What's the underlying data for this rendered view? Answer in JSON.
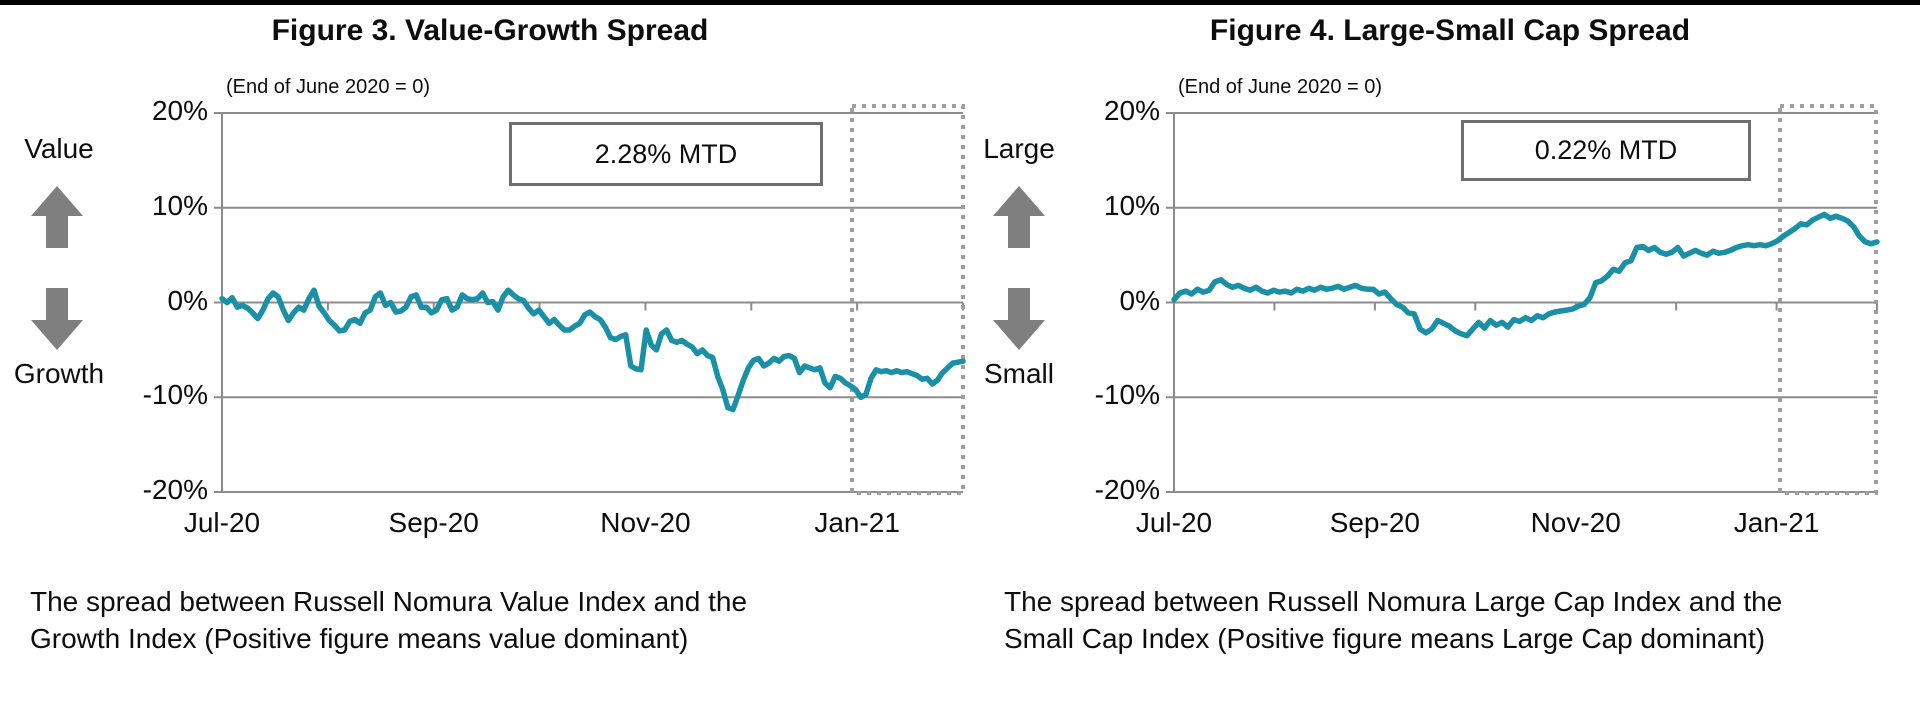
{
  "page": {
    "description": "Two side-by-side line charts comparing Japanese equity style spreads",
    "background_color": "#ffffff",
    "top_bar_color": "#000000"
  },
  "chart_data": [
    {
      "type": "line",
      "title": "Figure 3. Value-Growth Spread",
      "subtitle": "(End of June 2020 = 0)",
      "mtd_label": "2.28% MTD",
      "axis_label_top": "Value",
      "axis_label_bottom": "Growth",
      "caption_line1": "The spread between Russell Nomura Value Index and the",
      "caption_line2": "Growth Index (Positive figure means value dominant)",
      "series_name": "Russell Nomura Value minus Growth cumulative spread (%)",
      "y_tick_labels": [
        "20%",
        "10%",
        "0%",
        "-10%",
        "-20%"
      ],
      "x_tick_labels": [
        "Jul-20",
        "Sep-20",
        "Nov-20",
        "Jan-21"
      ],
      "x_tick_month_offsets": [
        0,
        2,
        4,
        6
      ],
      "x_months_span": 7,
      "ylim": [
        -20,
        20
      ],
      "grid": "horizontal",
      "legend": "none",
      "highlight": "dotted box over January 2021",
      "line_color": "#1A90A6",
      "values": [
        0.4,
        0.0,
        0.5,
        -0.5,
        -0.3,
        -0.6,
        -1.1,
        -1.7,
        -0.8,
        0.4,
        1.0,
        0.6,
        -0.8,
        -1.9,
        -1.1,
        -0.5,
        -0.8,
        0.4,
        1.3,
        -0.4,
        -1.1,
        -1.9,
        -2.4,
        -3.0,
        -2.9,
        -2.0,
        -1.8,
        -2.2,
        -1.1,
        -0.8,
        0.6,
        1.0,
        -0.3,
        0.0,
        -1.0,
        -0.9,
        -0.5,
        0.6,
        0.8,
        -0.5,
        -0.5,
        -1.1,
        -0.8,
        0.3,
        0.4,
        -0.8,
        -0.5,
        0.8,
        0.4,
        0.3,
        0.4,
        1.0,
        0.0,
        0.1,
        -0.8,
        0.6,
        1.3,
        0.8,
        0.4,
        0.2,
        -0.6,
        -1.2,
        -0.8,
        -1.5,
        -2.2,
        -1.8,
        -2.4,
        -2.9,
        -2.9,
        -2.5,
        -2.2,
        -1.3,
        -1.0,
        -1.5,
        -1.8,
        -2.6,
        -3.7,
        -3.9,
        -3.6,
        -3.4,
        -6.7,
        -7.0,
        -7.1,
        -2.9,
        -4.5,
        -5.0,
        -3.3,
        -2.9,
        -4.0,
        -4.2,
        -4.0,
        -4.4,
        -4.7,
        -5.4,
        -5.0,
        -5.6,
        -5.8,
        -7.8,
        -9.2,
        -11.1,
        -11.3,
        -9.8,
        -8.2,
        -6.9,
        -6.1,
        -5.9,
        -6.7,
        -6.4,
        -5.9,
        -6.2,
        -5.7,
        -5.6,
        -5.9,
        -7.4,
        -6.7,
        -6.9,
        -7.1,
        -6.9,
        -8.5,
        -9.0,
        -7.8,
        -8.0,
        -8.5,
        -8.8,
        -9.2,
        -10.0,
        -9.7,
        -8.0,
        -7.1,
        -7.3,
        -7.2,
        -7.4,
        -7.2,
        -7.4,
        -7.3,
        -7.5,
        -7.7,
        -8.1,
        -8.0,
        -8.6,
        -8.2,
        -7.4,
        -6.9,
        -6.4,
        -6.3,
        -6.2
      ]
    },
    {
      "type": "line",
      "title": "Figure 4. Large-Small Cap Spread",
      "subtitle": "(End of June 2020 = 0)",
      "mtd_label": "0.22% MTD",
      "axis_label_top": "Large",
      "axis_label_bottom": "Small",
      "caption_line1": "The spread between Russell Nomura Large Cap Index and the",
      "caption_line2": "Small Cap Index (Positive figure means Large Cap dominant)",
      "series_name": "Russell Nomura Large Cap minus Small Cap cumulative spread (%)",
      "y_tick_labels": [
        "20%",
        "10%",
        "0%",
        "-10%",
        "-20%"
      ],
      "x_tick_labels": [
        "Jul-20",
        "Sep-20",
        "Nov-20",
        "Jan-21"
      ],
      "x_tick_month_offsets": [
        0,
        2,
        4,
        6
      ],
      "x_months_span": 7,
      "ylim": [
        -20,
        20
      ],
      "grid": "horizontal",
      "legend": "none",
      "highlight": "dotted box over January 2021",
      "line_color": "#1A90A6",
      "values": [
        0.3,
        1.0,
        1.2,
        0.9,
        1.4,
        1.1,
        1.3,
        2.2,
        2.4,
        1.9,
        1.6,
        1.8,
        1.5,
        1.3,
        1.6,
        1.2,
        1.0,
        1.3,
        1.1,
        1.2,
        1.0,
        1.4,
        1.2,
        1.5,
        1.3,
        1.6,
        1.4,
        1.5,
        1.7,
        1.4,
        1.6,
        1.8,
        1.5,
        1.4,
        1.4,
        0.9,
        1.1,
        0.4,
        -0.2,
        -0.5,
        -1.1,
        -1.2,
        -2.8,
        -3.2,
        -2.8,
        -1.9,
        -2.2,
        -2.5,
        -3.0,
        -3.3,
        -3.5,
        -2.8,
        -2.1,
        -2.7,
        -1.9,
        -2.4,
        -2.1,
        -2.6,
        -1.8,
        -2.0,
        -1.6,
        -1.9,
        -1.4,
        -1.6,
        -1.2,
        -1.0,
        -0.9,
        -0.8,
        -0.7,
        -0.4,
        -0.2,
        0.5,
        2.1,
        2.3,
        2.8,
        3.5,
        3.3,
        4.2,
        4.4,
        5.8,
        5.9,
        5.5,
        5.8,
        5.3,
        5.1,
        5.3,
        5.8,
        4.9,
        5.2,
        5.5,
        5.2,
        5.0,
        5.4,
        5.2,
        5.3,
        5.5,
        5.8,
        6.0,
        6.1,
        6.0,
        6.1,
        6.0,
        6.2,
        6.5,
        7.0,
        7.4,
        7.8,
        8.3,
        8.2,
        8.7,
        9.0,
        9.3,
        8.9,
        9.1,
        8.9,
        8.6,
        8.0,
        7.0,
        6.4,
        6.2,
        6.4
      ]
    }
  ]
}
